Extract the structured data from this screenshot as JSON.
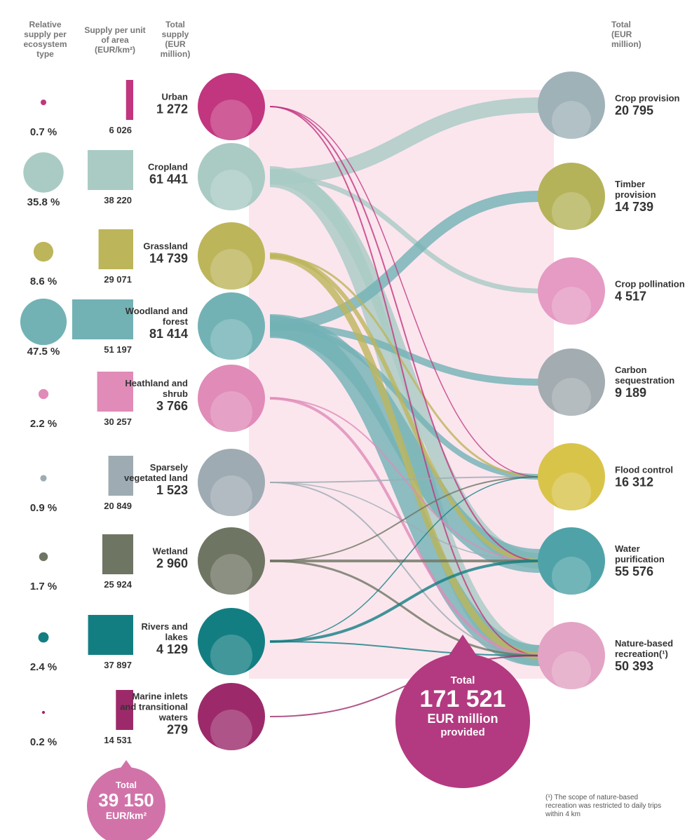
{
  "chart_data": {
    "type": "ecosystem-flow",
    "headers": {
      "relative": "Relative supply per ecosystem type",
      "per_area": "Supply per unit of area (EUR/km²)",
      "total_supply": "Total supply (EUR million)",
      "service_total": "Total (EUR million)"
    },
    "ecosystems": [
      {
        "name": "Urban",
        "relative_share": 0.7,
        "relative_label": "0.7 %",
        "per_area": 6026,
        "per_area_label": "6 026",
        "total": 1272,
        "total_label": "1 272",
        "color": "#c2357f"
      },
      {
        "name": "Cropland",
        "relative_share": 35.8,
        "relative_label": "35.8 %",
        "per_area": 38220,
        "per_area_label": "38 220",
        "total": 61441,
        "total_label": "61 441",
        "color": "#a9cbc4"
      },
      {
        "name": "Grassland",
        "relative_share": 8.6,
        "relative_label": "8.6 %",
        "per_area": 29071,
        "per_area_label": "29 071",
        "total": 14739,
        "total_label": "14 739",
        "color": "#bdb55a"
      },
      {
        "name": "Woodland and forest",
        "relative_share": 47.5,
        "relative_label": "47.5 %",
        "per_area": 51197,
        "per_area_label": "51 197",
        "total": 81414,
        "total_label": "81 414",
        "color": "#72b2b5"
      },
      {
        "name": "Heathland and shrub",
        "relative_share": 2.2,
        "relative_label": "2.2 %",
        "per_area": 30257,
        "per_area_label": "30 257",
        "total": 3766,
        "total_label": "3 766",
        "color": "#e08bb8"
      },
      {
        "name": "Sparsely vegetated land",
        "relative_share": 0.9,
        "relative_label": "0.9 %",
        "per_area": 20849,
        "per_area_label": "20 849",
        "total": 1523,
        "total_label": "1 523",
        "color": "#9eabb2"
      },
      {
        "name": "Wetland",
        "relative_share": 1.7,
        "relative_label": "1.7 %",
        "per_area": 25924,
        "per_area_label": "25 924",
        "total": 2960,
        "total_label": "2 960",
        "color": "#6f7563"
      },
      {
        "name": "Rivers and lakes",
        "relative_share": 2.4,
        "relative_label": "2.4 %",
        "per_area": 37897,
        "per_area_label": "37 897",
        "total": 4129,
        "total_label": "4 129",
        "color": "#137e82"
      },
      {
        "name": "Marine inlets and transitional waters",
        "relative_share": 0.2,
        "relative_label": "0.2 %",
        "per_area": 14531,
        "per_area_label": "14 531",
        "total": 279,
        "total_label": "279",
        "color": "#9c2a6b"
      }
    ],
    "services": [
      {
        "name": "Crop provision",
        "total": 20795,
        "total_label": "20 795",
        "color": "#9fb2b8"
      },
      {
        "name": "Timber provision",
        "total": 14739,
        "total_label": "14 739",
        "color": "#b5b35a"
      },
      {
        "name": "Crop pollination",
        "total": 4517,
        "total_label": "4 517",
        "color": "#e59bc3"
      },
      {
        "name": "Carbon sequestration",
        "total": 9189,
        "total_label": "9 189",
        "color": "#a3acb0"
      },
      {
        "name": "Flood control",
        "total": 16312,
        "total_label": "16 312",
        "color": "#d9c44a"
      },
      {
        "name": "Water purification",
        "total": 55576,
        "total_label": "55 576",
        "color": "#4fa3a8"
      },
      {
        "name": "Nature-based recreation(¹)",
        "total": 50393,
        "total_label": "50 393",
        "color": "#e3a3c4"
      }
    ],
    "total_area": {
      "heading": "Total",
      "value": 39150,
      "value_label": "39 150",
      "unit": "EUR/km²"
    },
    "total_provided": {
      "heading": "Total",
      "value": 171521,
      "value_label": "171 521",
      "unit": "EUR million",
      "suffix": "provided"
    },
    "footnote": "(¹) The scope of nature-based recreation was restricted to daily trips within 4 km"
  }
}
